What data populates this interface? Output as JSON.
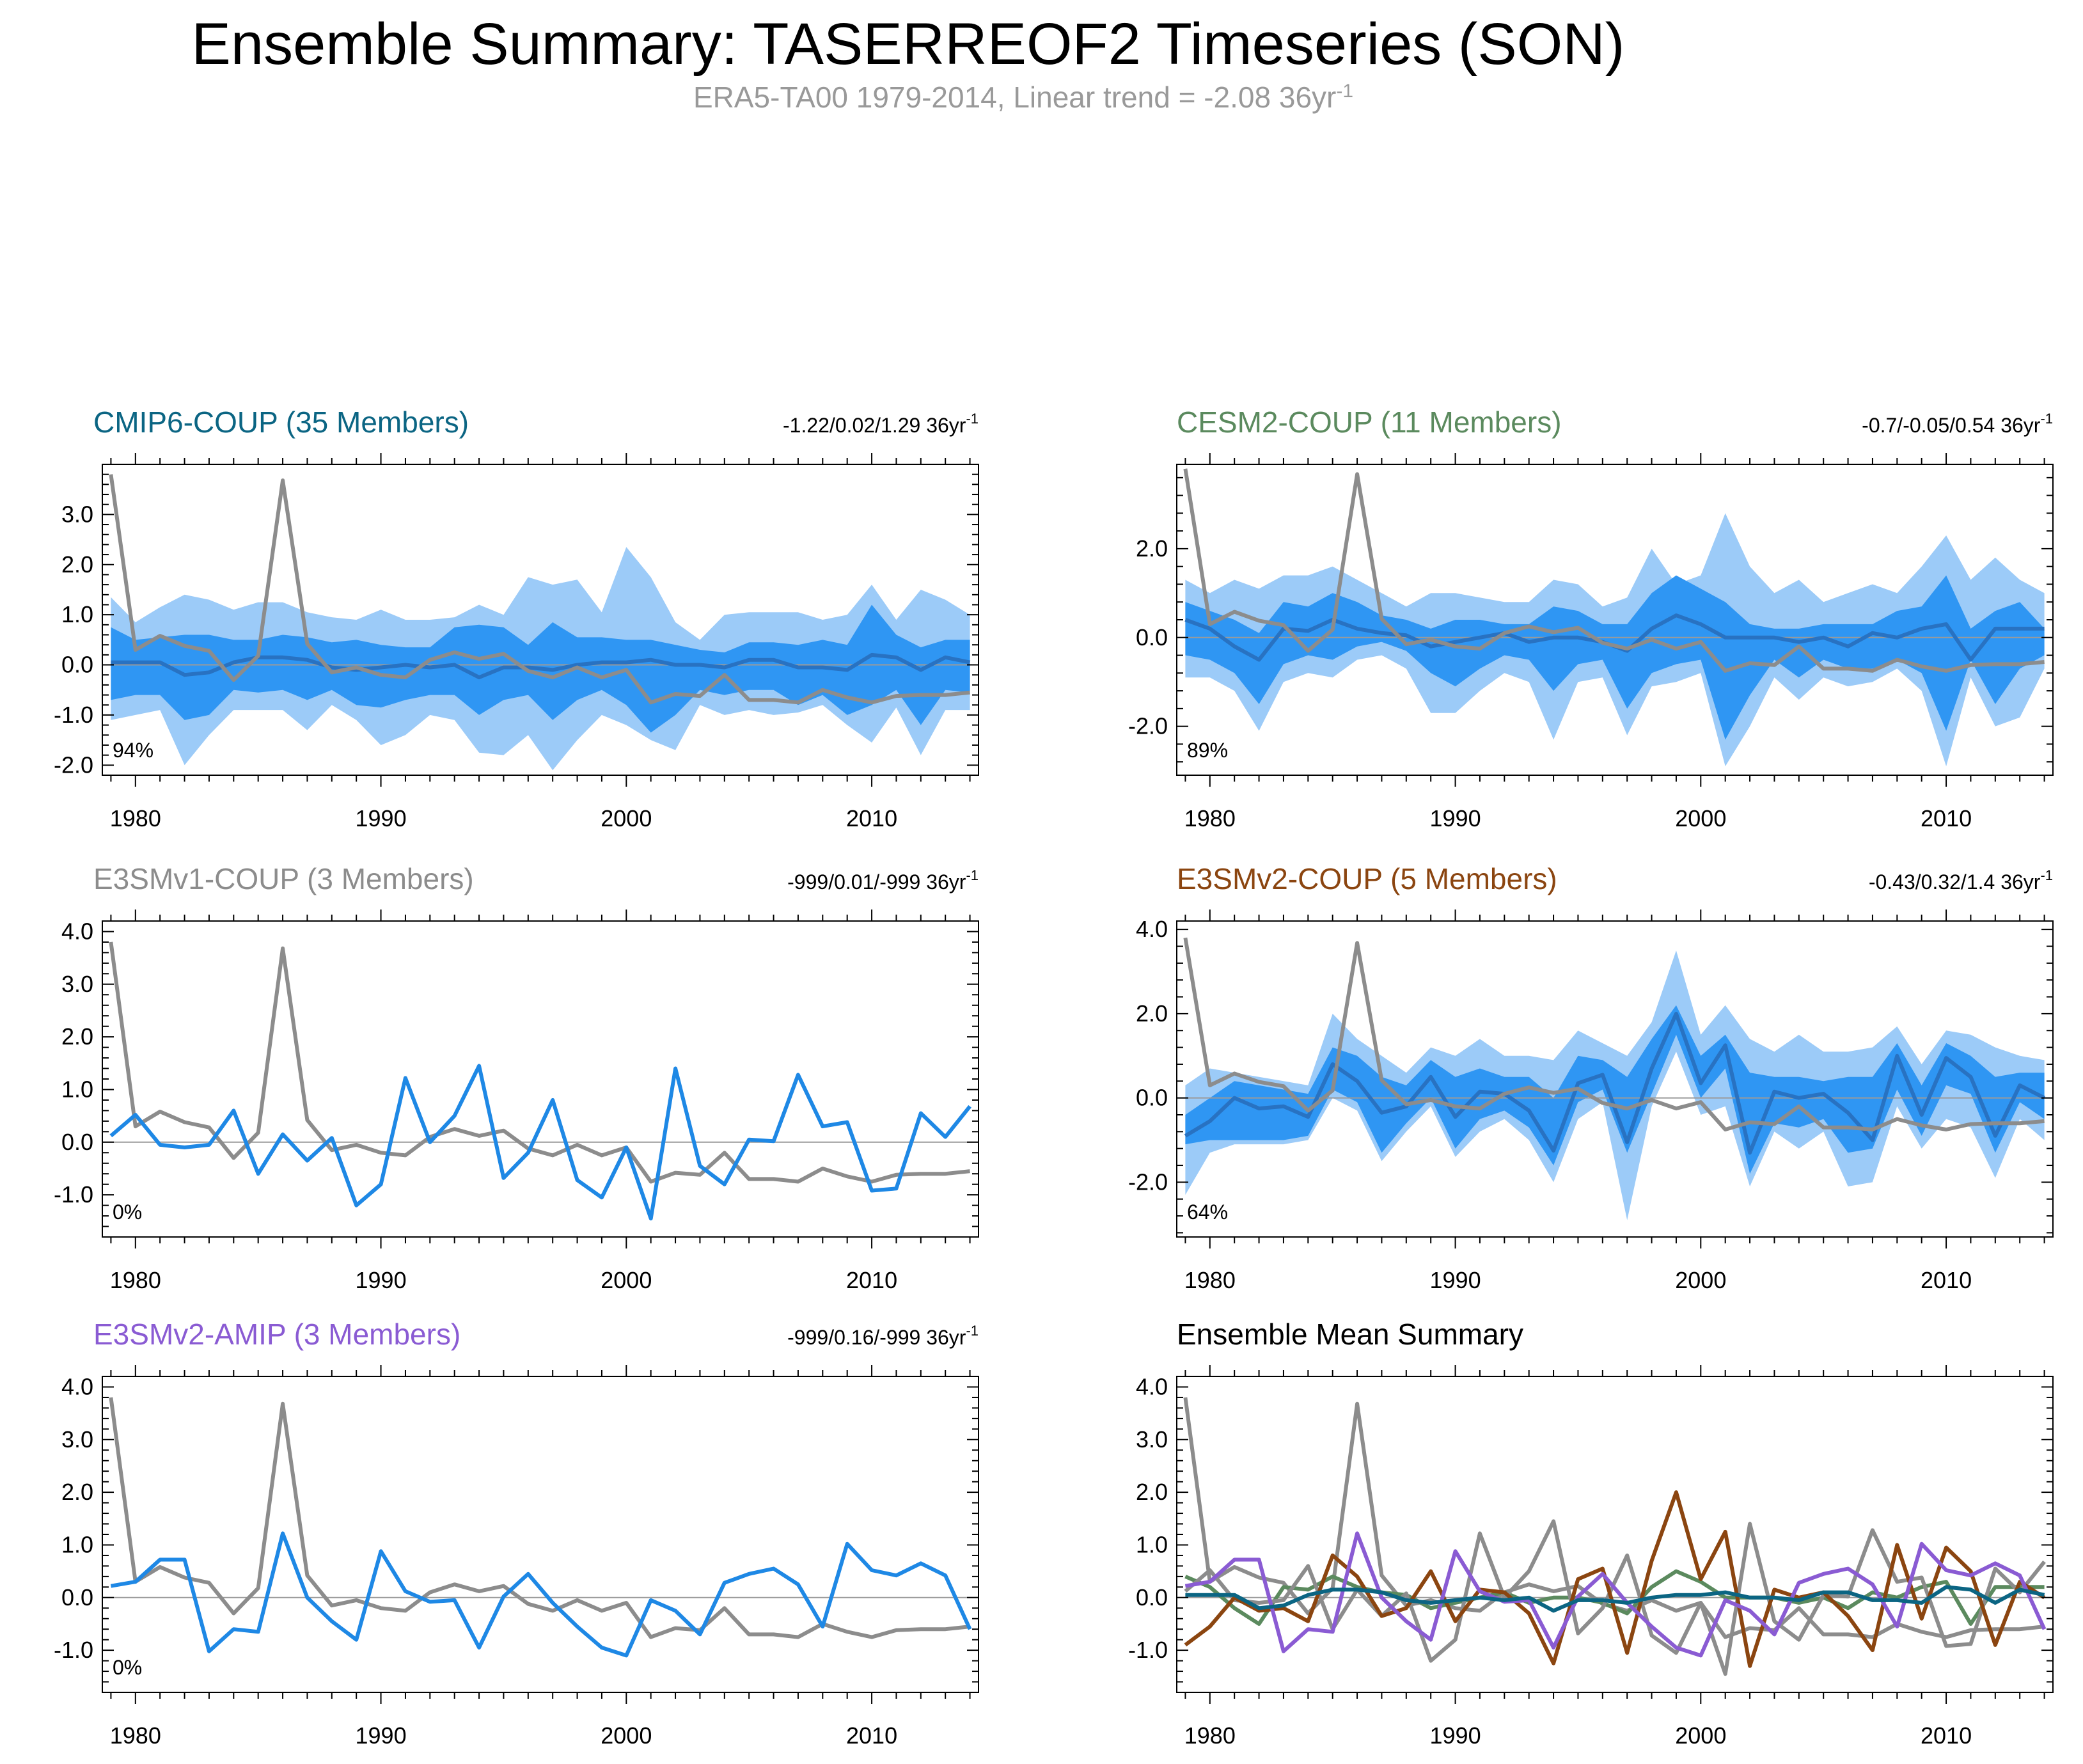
{
  "title": "Ensemble Summary: TASERREOF2 Timeseries (SON)",
  "subtitle": "ERA5-TA00 1979-2014, Linear trend = -2.08 36yr",
  "subtitle_sup": "-1",
  "colors": {
    "obs": "#8c8c8c",
    "member": "#1e88e5",
    "band_outer": "#9ccbf8",
    "band_inner": "#2f96f3",
    "mean_line": "#2872c2",
    "cmip6": "#0b6583",
    "cesm2": "#5b8a5e",
    "e3smv1": "#8c8c8c",
    "e3smv2": "#8b4510",
    "amip": "#8a5bd3"
  },
  "chart_data": {
    "type": "line",
    "years": [
      1979,
      1980,
      1981,
      1982,
      1983,
      1984,
      1985,
      1986,
      1987,
      1988,
      1989,
      1990,
      1991,
      1992,
      1993,
      1994,
      1995,
      1996,
      1997,
      1998,
      1999,
      2000,
      2001,
      2002,
      2003,
      2004,
      2005,
      2006,
      2007,
      2008,
      2009,
      2010,
      2011,
      2012,
      2013,
      2014
    ],
    "x_ticks": [
      "1980",
      "1990",
      "2000",
      "2010"
    ],
    "obs": {
      "name": "ERA5-TA00",
      "values": [
        3.8,
        0.3,
        0.58,
        0.38,
        0.28,
        -0.3,
        0.18,
        3.68,
        0.42,
        -0.15,
        -0.05,
        -0.2,
        -0.25,
        0.1,
        0.25,
        0.12,
        0.22,
        -0.12,
        -0.25,
        -0.05,
        -0.25,
        -0.1,
        -0.75,
        -0.58,
        -0.62,
        -0.2,
        -0.7,
        -0.7,
        -0.75,
        -0.5,
        -0.65,
        -0.75,
        -0.62,
        -0.6,
        -0.6,
        -0.55
      ]
    },
    "panels": [
      {
        "key": "cmip6",
        "title": "CMIP6-COUP (35 Members)",
        "title_color": "#0b6583",
        "stats": "-1.22/0.02/1.29 36yr",
        "stats_sup": "-1",
        "percent": "94%",
        "ylim": [
          -2.2,
          4.0
        ],
        "y_ticks": [
          "-2.0",
          "-1.0",
          "0.0",
          "1.0",
          "2.0",
          "3.0"
        ],
        "y_tick_values": [
          -2,
          -1,
          0,
          1,
          2,
          3
        ],
        "mean": [
          0.05,
          0.05,
          0.05,
          -0.2,
          -0.15,
          0.05,
          0.15,
          0.15,
          0.1,
          -0.05,
          -0.1,
          -0.05,
          0.0,
          -0.05,
          0.0,
          -0.25,
          -0.05,
          -0.05,
          -0.1,
          0.0,
          0.05,
          0.05,
          0.1,
          0.0,
          0.0,
          -0.05,
          0.1,
          0.1,
          -0.05,
          -0.05,
          -0.1,
          0.2,
          0.15,
          -0.1,
          0.15,
          0.05
        ],
        "p10": [
          -1.1,
          -1.0,
          -0.9,
          -2.0,
          -1.4,
          -0.9,
          -0.9,
          -0.9,
          -1.3,
          -0.8,
          -1.1,
          -1.6,
          -1.4,
          -1.0,
          -1.1,
          -1.75,
          -1.8,
          -1.4,
          -2.1,
          -1.5,
          -1.0,
          -1.2,
          -1.5,
          -1.7,
          -0.8,
          -1.0,
          -0.9,
          -1.0,
          -0.95,
          -0.8,
          -1.2,
          -1.55,
          -0.85,
          -1.8,
          -0.9,
          -0.9
        ],
        "p25": [
          -0.7,
          -0.6,
          -0.6,
          -1.1,
          -1.0,
          -0.5,
          -0.55,
          -0.5,
          -0.7,
          -0.5,
          -0.8,
          -0.85,
          -0.7,
          -0.6,
          -0.6,
          -1.0,
          -0.7,
          -0.6,
          -1.1,
          -0.7,
          -0.5,
          -0.8,
          -1.35,
          -1.0,
          -0.5,
          -0.6,
          -0.5,
          -0.5,
          -0.8,
          -0.6,
          -1.0,
          -0.8,
          -0.5,
          -1.2,
          -0.5,
          -0.55
        ],
        "p75": [
          0.75,
          0.5,
          0.55,
          0.6,
          0.6,
          0.5,
          0.5,
          0.6,
          0.55,
          0.45,
          0.5,
          0.4,
          0.35,
          0.35,
          0.75,
          0.8,
          0.75,
          0.4,
          0.85,
          0.55,
          0.55,
          0.5,
          0.5,
          0.4,
          0.3,
          0.25,
          0.45,
          0.45,
          0.4,
          0.5,
          0.4,
          1.2,
          0.6,
          0.35,
          0.5,
          0.5
        ],
        "p90": [
          1.35,
          0.85,
          1.15,
          1.4,
          1.3,
          1.1,
          1.25,
          1.25,
          1.05,
          0.95,
          0.9,
          1.1,
          0.9,
          0.9,
          0.95,
          1.2,
          1.0,
          1.75,
          1.6,
          1.7,
          1.05,
          2.35,
          1.75,
          0.85,
          0.5,
          1.0,
          1.05,
          1.05,
          1.05,
          0.9,
          1.0,
          1.6,
          0.9,
          1.5,
          1.3,
          1.0
        ]
      },
      {
        "key": "cesm2",
        "title": "CESM2-COUP (11 Members)",
        "title_color": "#5b8a5e",
        "stats": "-0.7/-0.05/0.54 36yr",
        "stats_sup": "-1",
        "percent": "89%",
        "ylim": [
          -3.1,
          3.9
        ],
        "y_ticks": [
          "-2.0",
          "0.0",
          "2.0"
        ],
        "y_tick_values": [
          -2,
          0,
          2
        ],
        "mean": [
          0.4,
          0.2,
          -0.2,
          -0.5,
          0.2,
          0.15,
          0.4,
          0.2,
          0.1,
          0.05,
          -0.2,
          -0.1,
          0.0,
          0.1,
          -0.1,
          0.0,
          0.0,
          -0.1,
          -0.3,
          0.2,
          0.5,
          0.3,
          0.0,
          0.0,
          0.0,
          -0.1,
          0.0,
          -0.2,
          0.1,
          0.0,
          0.2,
          0.3,
          -0.5,
          0.2,
          0.2,
          0.2
        ],
        "p10": [
          -0.9,
          -0.9,
          -1.2,
          -2.1,
          -1.0,
          -0.8,
          -0.9,
          -0.5,
          -0.4,
          -0.7,
          -1.7,
          -1.7,
          -1.2,
          -0.8,
          -1.0,
          -2.3,
          -1.0,
          -0.9,
          -2.2,
          -1.1,
          -1.0,
          -0.8,
          -2.9,
          -2.0,
          -0.9,
          -1.4,
          -0.9,
          -1.1,
          -1.0,
          -0.7,
          -1.2,
          -2.9,
          -0.9,
          -2.0,
          -1.8,
          -0.7
        ],
        "p25": [
          -0.4,
          -0.5,
          -0.8,
          -1.5,
          -0.6,
          -0.4,
          -0.5,
          -0.2,
          -0.1,
          -0.3,
          -0.8,
          -1.1,
          -0.7,
          -0.4,
          -0.5,
          -1.2,
          -0.6,
          -0.5,
          -1.6,
          -0.8,
          -0.6,
          -0.5,
          -2.3,
          -1.3,
          -0.5,
          -0.9,
          -0.5,
          -0.7,
          -0.7,
          -0.5,
          -0.8,
          -2.1,
          -0.5,
          -1.5,
          -0.7,
          -0.4
        ],
        "p75": [
          0.8,
          0.6,
          0.4,
          0.1,
          0.8,
          0.7,
          1.0,
          0.8,
          0.5,
          0.4,
          0.2,
          0.4,
          0.4,
          0.3,
          0.3,
          0.7,
          0.6,
          0.3,
          0.3,
          1.0,
          1.4,
          1.1,
          0.8,
          0.3,
          0.2,
          0.2,
          0.3,
          0.3,
          0.3,
          0.6,
          0.7,
          1.4,
          0.2,
          0.6,
          0.8,
          0.2
        ],
        "p90": [
          1.3,
          1.0,
          1.3,
          1.1,
          1.4,
          1.4,
          1.6,
          1.3,
          1.0,
          0.7,
          1.0,
          1.0,
          0.9,
          0.8,
          0.8,
          1.3,
          1.2,
          0.7,
          0.9,
          2.0,
          1.2,
          1.4,
          2.8,
          1.6,
          1.0,
          1.3,
          0.8,
          1.0,
          1.2,
          1.0,
          1.6,
          2.3,
          1.3,
          1.8,
          1.3,
          1.0
        ]
      },
      {
        "key": "e3smv1",
        "title": "E3SMv1-COUP (3 Members)",
        "title_color": "#8c8c8c",
        "stats": "-999/0.01/-999 36yr",
        "stats_sup": "-1",
        "percent": "0%",
        "ylim": [
          -1.8,
          4.2
        ],
        "y_ticks": [
          "-1.0",
          "0.0",
          "1.0",
          "2.0",
          "3.0",
          "4.0"
        ],
        "y_tick_values": [
          -1,
          0,
          1,
          2,
          3,
          4
        ],
        "mean": [
          0.12,
          0.52,
          -0.05,
          -0.1,
          -0.05,
          0.6,
          -0.6,
          0.15,
          -0.35,
          0.08,
          -1.2,
          -0.8,
          1.22,
          0.0,
          0.5,
          1.45,
          -0.68,
          -0.2,
          0.8,
          -0.72,
          -1.05,
          -0.1,
          -1.45,
          1.4,
          -0.45,
          -0.8,
          0.05,
          0.02,
          1.28,
          0.3,
          0.38,
          -0.92,
          -0.88,
          0.55,
          0.1,
          0.68
        ]
      },
      {
        "key": "e3smv2",
        "title": "E3SMv2-COUP (5 Members)",
        "title_color": "#8b4510",
        "stats": "-0.43/0.32/1.4 36yr",
        "stats_sup": "-1",
        "percent": "64%",
        "ylim": [
          -3.3,
          4.2
        ],
        "y_ticks": [
          "-2.0",
          "0.0",
          "2.0",
          "4.0"
        ],
        "y_tick_values": [
          -2,
          0,
          2,
          4
        ],
        "mean": [
          -0.9,
          -0.55,
          0.0,
          -0.25,
          -0.2,
          -0.45,
          0.8,
          0.4,
          -0.35,
          -0.2,
          0.5,
          -0.45,
          0.15,
          0.1,
          -0.3,
          -1.25,
          0.35,
          0.55,
          -1.05,
          0.7,
          2.0,
          0.35,
          1.25,
          -1.3,
          0.15,
          0.0,
          0.1,
          -0.35,
          -1.0,
          1.0,
          -0.4,
          0.95,
          0.5,
          -0.9,
          0.3,
          0.0
        ],
        "p10": [
          -2.3,
          -1.3,
          -1.1,
          -1.1,
          -1.1,
          -1.0,
          0.0,
          -0.3,
          -1.5,
          -0.8,
          -0.2,
          -1.4,
          -0.8,
          -0.5,
          -1.0,
          -2.0,
          -0.5,
          -0.1,
          -2.9,
          -0.2,
          1.1,
          -0.4,
          -0.2,
          -2.1,
          -0.8,
          -1.2,
          -0.8,
          -2.1,
          -2.0,
          -0.2,
          -1.2,
          -0.5,
          -0.7,
          -1.9,
          -0.5,
          -1.0
        ],
        "p25": [
          -1.1,
          -1.0,
          -1.0,
          -1.0,
          -1.0,
          -0.9,
          0.2,
          -0.1,
          -1.3,
          -0.6,
          0.0,
          -1.2,
          -0.5,
          -0.3,
          -0.7,
          -1.6,
          -0.1,
          0.2,
          -1.3,
          0.1,
          1.5,
          0.0,
          0.7,
          -1.8,
          -0.6,
          -0.7,
          -0.5,
          -1.3,
          -1.2,
          0.2,
          -0.9,
          0.3,
          0.1,
          -1.3,
          -0.1,
          -0.5
        ],
        "p75": [
          -0.4,
          0.0,
          0.4,
          0.3,
          0.2,
          0.1,
          1.2,
          1.0,
          0.5,
          0.3,
          0.9,
          0.5,
          0.7,
          0.5,
          0.5,
          0.0,
          1.0,
          0.9,
          0.5,
          1.4,
          2.2,
          1.0,
          1.5,
          0.6,
          0.5,
          0.5,
          0.4,
          0.5,
          0.5,
          1.3,
          0.3,
          1.3,
          1.0,
          0.5,
          0.6,
          0.6
        ],
        "p90": [
          0.3,
          0.7,
          0.6,
          0.5,
          0.4,
          0.3,
          2.0,
          1.4,
          1.0,
          0.6,
          1.2,
          1.0,
          1.4,
          1.0,
          1.0,
          0.9,
          1.6,
          1.3,
          1.0,
          1.8,
          3.5,
          1.5,
          2.2,
          1.4,
          1.1,
          1.5,
          1.1,
          1.1,
          1.2,
          1.7,
          0.8,
          1.6,
          1.5,
          1.2,
          1.0,
          0.9
        ]
      },
      {
        "key": "amip",
        "title": "E3SMv2-AMIP (3 Members)",
        "title_color": "#8a5bd3",
        "stats": "-999/0.16/-999 36yr",
        "stats_sup": "-1",
        "percent": "0%",
        "ylim": [
          -1.8,
          4.2
        ],
        "y_ticks": [
          "-1.0",
          "0.0",
          "1.0",
          "2.0",
          "3.0",
          "4.0"
        ],
        "y_tick_values": [
          -1,
          0,
          1,
          2,
          3,
          4
        ],
        "mean": [
          0.22,
          0.3,
          0.72,
          0.72,
          -1.02,
          -0.6,
          -0.65,
          1.22,
          0.0,
          -0.45,
          -0.8,
          0.88,
          0.12,
          -0.08,
          -0.05,
          -0.95,
          0.02,
          0.45,
          -0.1,
          -0.55,
          -0.95,
          -1.1,
          -0.05,
          -0.25,
          -0.7,
          0.28,
          0.45,
          0.55,
          0.25,
          -0.55,
          1.02,
          0.52,
          0.42,
          0.65,
          0.42,
          -0.6
        ]
      },
      {
        "key": "summary",
        "title": "Ensemble Mean Summary",
        "title_color": "#000000",
        "ylim": [
          -1.8,
          4.2
        ],
        "y_ticks": [
          "-1.0",
          "0.0",
          "1.0",
          "2.0",
          "3.0",
          "4.0"
        ],
        "y_tick_values": [
          -1,
          0,
          1,
          2,
          3,
          4
        ],
        "lines": [
          "cesm2",
          "e3smv1",
          "e3smv2",
          "amip",
          "cmip6"
        ]
      }
    ]
  }
}
